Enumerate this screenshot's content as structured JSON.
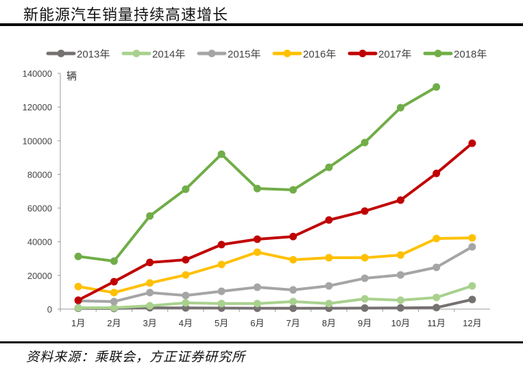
{
  "header": {
    "title": "新能源汽车销量持续高速增长"
  },
  "footer": {
    "source": "资料来源：乘联会，方正证券研究所"
  },
  "chart_data": {
    "type": "line",
    "title": "新能源汽车销量持续高速增长",
    "ylabel": "辆",
    "xlabel": "",
    "ylim": [
      0,
      140000
    ],
    "yticks": [
      0,
      20000,
      40000,
      60000,
      80000,
      100000,
      120000,
      140000
    ],
    "ytick_labels": [
      "0",
      "20000",
      "40000",
      "60000",
      "80000",
      "100000",
      "120000",
      "140000"
    ],
    "categories": [
      "1月",
      "2月",
      "3月",
      "4月",
      "5月",
      "6月",
      "7月",
      "8月",
      "9月",
      "10月",
      "11月",
      "12月"
    ],
    "legend_position": "top",
    "grid": false,
    "series": [
      {
        "name": "2013年",
        "color": "#767171",
        "values": [
          500,
          400,
          800,
          700,
          600,
          500,
          500,
          500,
          600,
          700,
          900,
          5700
        ]
      },
      {
        "name": "2014年",
        "color": "#a9d18e",
        "values": [
          800,
          800,
          2000,
          3700,
          3300,
          3300,
          4500,
          3300,
          6100,
          5300,
          6900,
          13800
        ]
      },
      {
        "name": "2015年",
        "color": "#a5a5a5",
        "values": [
          4900,
          4500,
          9800,
          8100,
          10600,
          13000,
          11400,
          13800,
          18300,
          20300,
          24800,
          37000
        ]
      },
      {
        "name": "2016年",
        "color": "#ffc000",
        "values": [
          13400,
          9800,
          15500,
          20300,
          26500,
          33800,
          29300,
          30500,
          30500,
          32100,
          41900,
          42300
        ]
      },
      {
        "name": "2017年",
        "color": "#c00000",
        "values": [
          5300,
          16300,
          27700,
          29300,
          38300,
          41500,
          43100,
          52900,
          58200,
          64700,
          80600,
          98500
        ]
      },
      {
        "name": "2018年",
        "color": "#70ad47",
        "values": [
          31300,
          28500,
          55300,
          71200,
          92000,
          71600,
          70800,
          84200,
          98900,
          119600,
          131900,
          null
        ]
      }
    ]
  }
}
